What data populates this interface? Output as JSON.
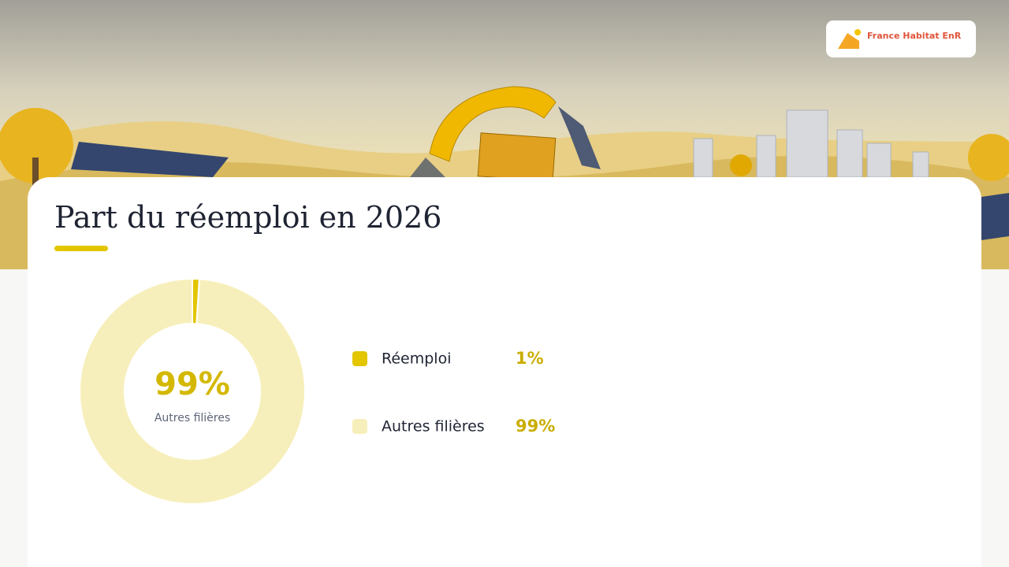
{
  "brand": "France Habitat EnR",
  "chart_data": {
    "type": "pie",
    "title": "Part du réemploi en 2026",
    "categories": [
      "Réemploi",
      "Autres filières"
    ],
    "values": [
      1,
      99
    ],
    "value_labels": [
      "1%",
      "99%"
    ],
    "colors": [
      "#e3c500",
      "#f7efbb"
    ],
    "donut": true,
    "center": {
      "label_index": 1
    }
  }
}
